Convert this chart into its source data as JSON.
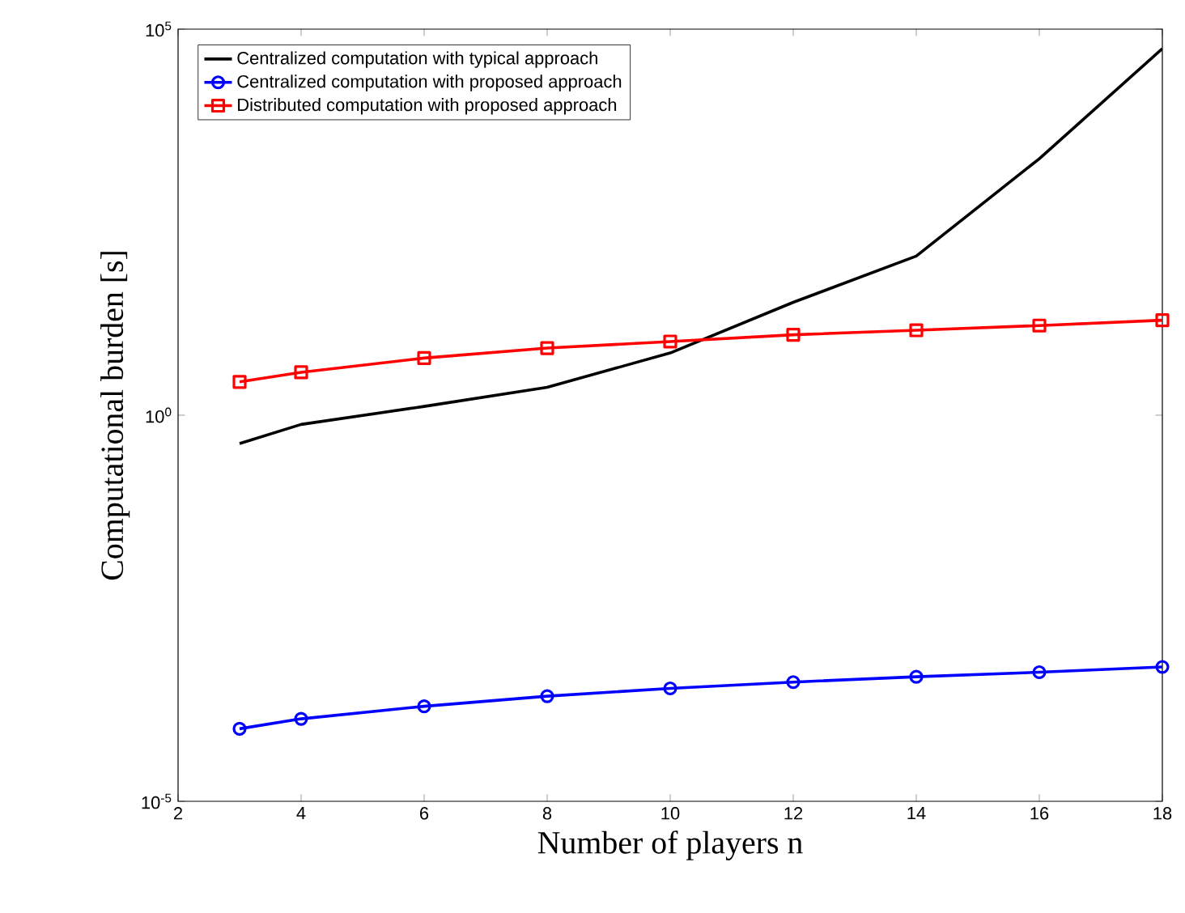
{
  "chart_data": {
    "type": "line",
    "xlabel": "Number of players n",
    "ylabel": "Computational burden [s]",
    "log": "y",
    "xlim": [
      2,
      18
    ],
    "xticks": [
      2,
      4,
      6,
      8,
      10,
      12,
      14,
      16,
      18
    ],
    "ylim": [
      1e-05,
      100000
    ],
    "yticks": [
      {
        "value": 1e-05,
        "label": "10$^{-5}$"
      },
      {
        "value": 1,
        "label": "10$^{0}$"
      },
      {
        "value": 100000,
        "label": "10$^{5}$"
      }
    ],
    "legend": "top left",
    "grid": false,
    "series": [
      {
        "name": "Centralized computation with typical approach",
        "color": "#000000",
        "marker": "none",
        "x": [
          3,
          4,
          6,
          8,
          10,
          12,
          14,
          16,
          18
        ],
        "values": [
          0.43,
          0.76,
          1.3,
          2.3,
          6.4,
          29,
          115,
          2100,
          56000
        ]
      },
      {
        "name": "Centralized computation with proposed approach",
        "color": "#0000ff",
        "marker": "circle",
        "x": [
          3,
          4,
          6,
          8,
          10,
          12,
          14,
          16,
          18
        ],
        "values": [
          8.7e-05,
          0.000117,
          0.00017,
          0.00023,
          0.00029,
          0.00035,
          0.00041,
          0.00047,
          0.00055
        ]
      },
      {
        "name": "Distributed computation with proposed approach",
        "color": "#ff0000",
        "marker": "square",
        "x": [
          3,
          4,
          6,
          8,
          10,
          12,
          14,
          16,
          18
        ],
        "values": [
          2.7,
          3.6,
          5.5,
          7.4,
          9,
          11,
          12.6,
          14.5,
          17
        ]
      }
    ]
  }
}
